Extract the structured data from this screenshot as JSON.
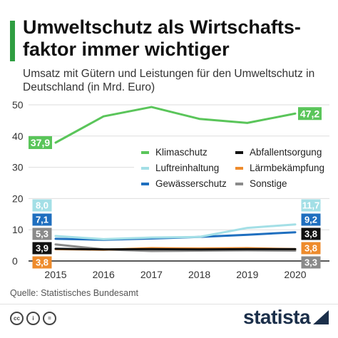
{
  "header": {
    "title": "Umweltschutz als Wirtschafts-faktor immer wichtiger",
    "subtitle": "Umsatz mit Gütern und Leistungen für den Umweltschutz in Deutschland (in Mrd. Euro)"
  },
  "chart_data": {
    "type": "line",
    "title": "Umweltschutz als Wirtschafts-faktor immer wichtiger",
    "subtitle": "Umsatz mit Gütern und Leistungen für den Umweltschutz in Deutschland (in Mrd. Euro)",
    "x": [
      2015,
      2016,
      2017,
      2018,
      2019,
      2020
    ],
    "x_tick_labels": [
      "2015",
      "2016",
      "2017",
      "2018",
      "2019",
      "2020"
    ],
    "y_ticks": [
      0,
      10,
      20,
      30,
      40,
      50
    ],
    "y_tick_labels": [
      "0",
      "10",
      "20",
      "30",
      "40",
      "50"
    ],
    "ylim": [
      0,
      50
    ],
    "grid": true,
    "legend_position": "center-right",
    "series": [
      {
        "name": "Klimaschutz",
        "color": "#5ac55a",
        "values": [
          37.9,
          46.3,
          49.3,
          45.5,
          44.2,
          47.2
        ],
        "start_label": "37,9",
        "end_label": "47,2"
      },
      {
        "name": "Abfallentsorgung",
        "color": "#111111",
        "values": [
          3.9,
          3.7,
          3.8,
          3.7,
          3.8,
          3.8
        ],
        "start_label": "3,9",
        "end_label": "3,8"
      },
      {
        "name": "Luftreinhaltung",
        "color": "#a3dfe6",
        "values": [
          8.0,
          7.0,
          7.5,
          7.7,
          10.6,
          11.7
        ],
        "start_label": "8,0",
        "end_label": "11,7"
      },
      {
        "name": "Lärmbekämpfung",
        "color": "#ee8b2c",
        "values": [
          3.8,
          3.6,
          4.1,
          4.0,
          4.1,
          3.8
        ],
        "start_label": "3,8",
        "end_label": "3,8"
      },
      {
        "name": "Gewässerschutz",
        "color": "#1f6fbf",
        "values": [
          7.1,
          6.8,
          7.2,
          7.7,
          8.4,
          9.2
        ],
        "start_label": "7,1",
        "end_label": "9,2"
      },
      {
        "name": "Sonstige",
        "color": "#8a8a8a",
        "values": [
          5.3,
          3.7,
          3.2,
          3.3,
          3.4,
          3.3
        ],
        "start_label": "5,3",
        "end_label": "3,3"
      }
    ]
  },
  "footer": {
    "source": "Quelle: Statistisches Bundesamt",
    "license_icons": [
      "cc",
      "i",
      "="
    ],
    "brand": "statista"
  }
}
